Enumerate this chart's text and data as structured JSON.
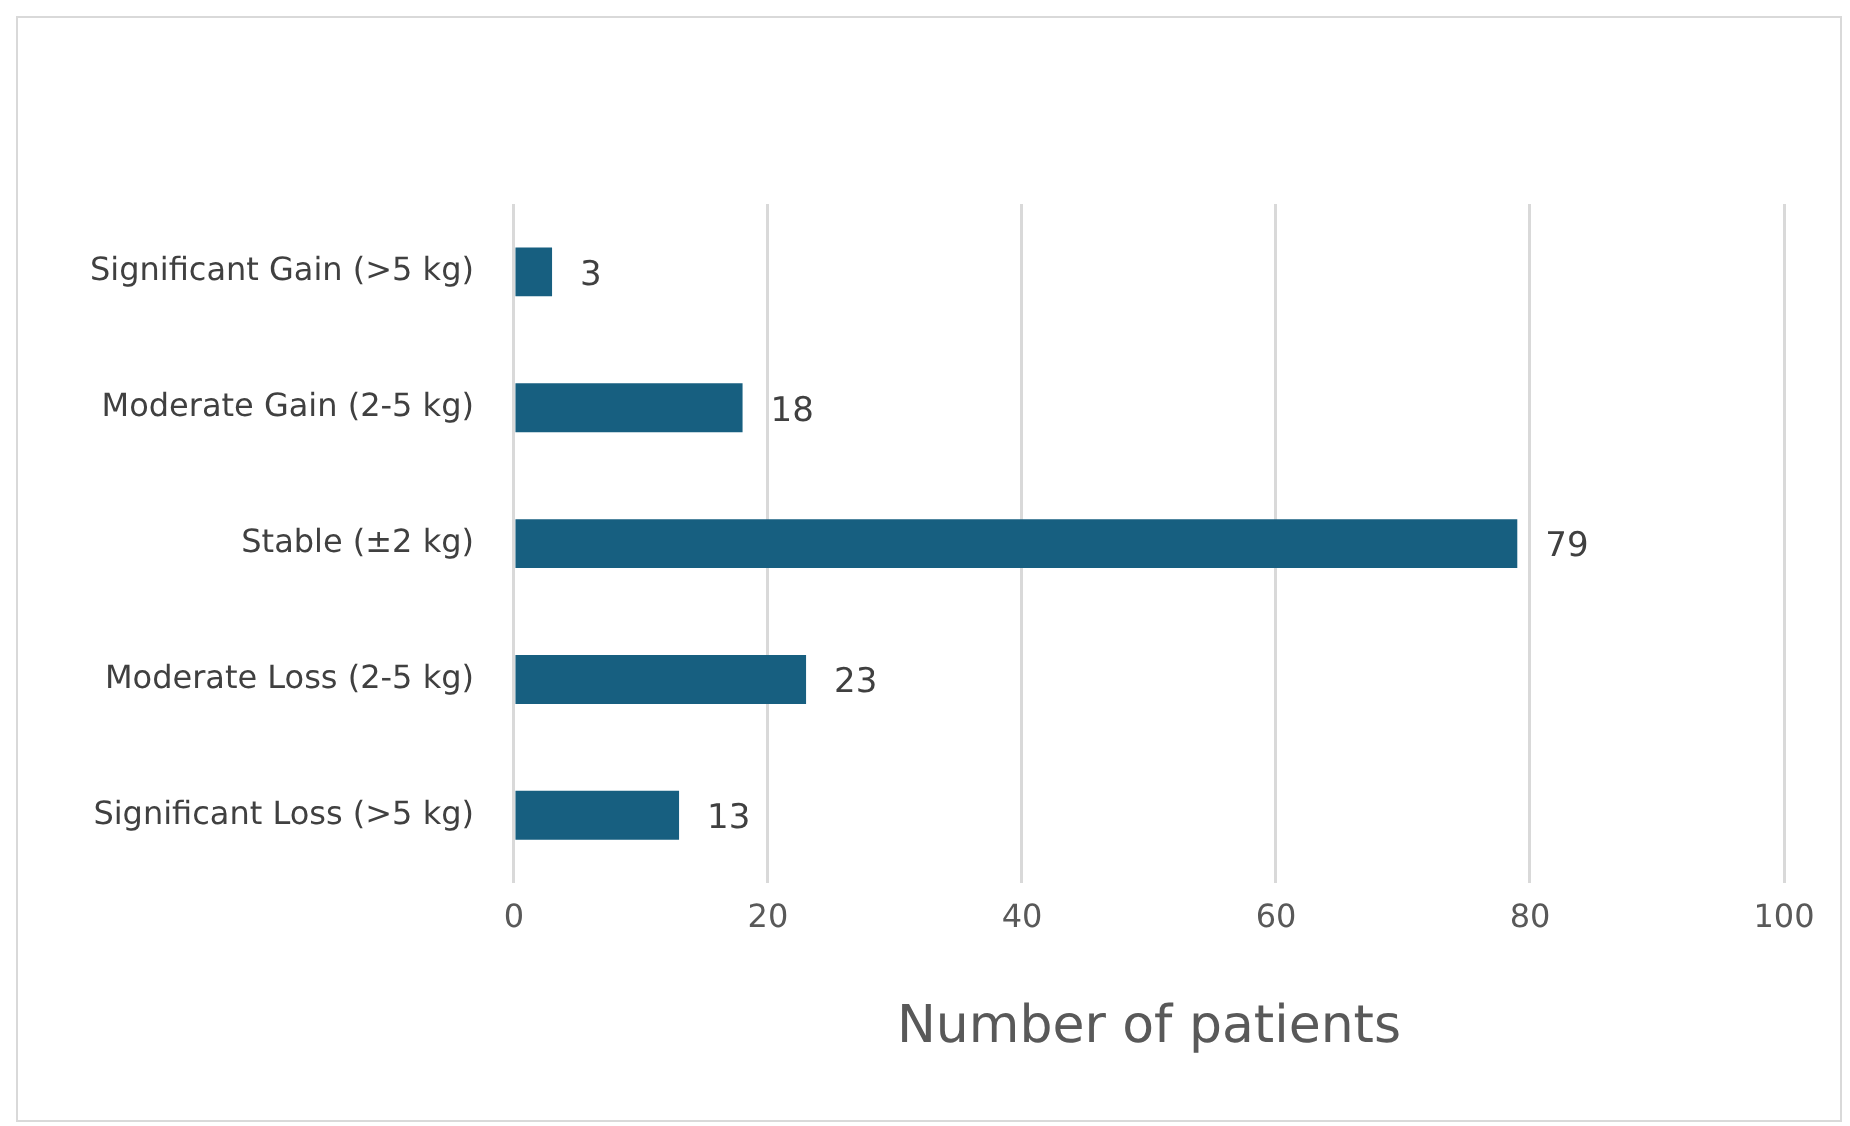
{
  "chart_data": {
    "type": "bar",
    "orientation": "horizontal",
    "xlabel": "Number of patients",
    "categories": [
      "Significant Gain (>5 kg)",
      "Moderate Gain (2-5 kg)",
      "Stable (±2 kg)",
      "Moderate Loss (2-5 kg)",
      "Significant Loss (>5 kg)"
    ],
    "values": [
      3,
      18,
      79,
      23,
      13
    ],
    "color": "#175f80",
    "xlim": [
      0,
      100
    ],
    "xticks": [
      0,
      20,
      40,
      60,
      80,
      100
    ],
    "grid": "x",
    "data_labels": true,
    "legend": false
  }
}
